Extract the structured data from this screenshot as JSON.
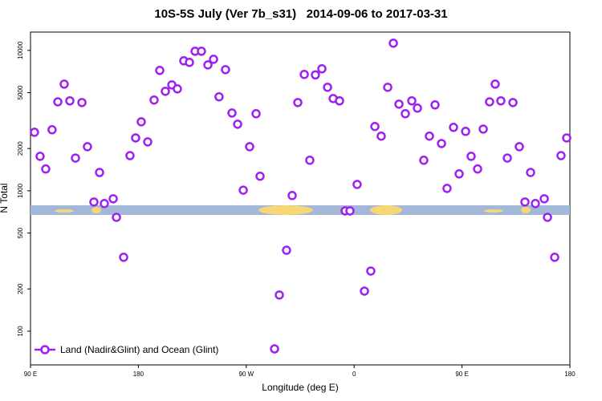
{
  "chart_data": {
    "type": "scatter",
    "title": "10S-5S July (Ver 7b_s31)   2014-09-06 to 2017-03-31",
    "x_label": "Longitude (deg E)",
    "y_label": "N Total",
    "log_y": true,
    "color": "#a020f0",
    "legend": "lower left",
    "xlim": [
      90,
      540
    ],
    "ylim": [
      57.5,
      13500
    ],
    "xticks": [
      {
        "value": 90,
        "label": "90 E"
      },
      {
        "value": 180,
        "label": "180"
      },
      {
        "value": 270,
        "label": "90 W"
      },
      {
        "value": 360,
        "label": "0"
      },
      {
        "value": 450,
        "label": "90 E"
      },
      {
        "value": 540,
        "label": "180"
      }
    ],
    "yticks": [
      100,
      200,
      500,
      1000,
      2000,
      5000,
      10000
    ],
    "series": [
      {
        "name": "Land (Nadir&Glint) and Ocean (Glint)",
        "color": "#a020f0",
        "x": [
          93.3,
          98,
          102.7,
          108,
          112.8,
          118.1,
          122.8,
          127.5,
          132.9,
          137.5,
          142.9,
          147.6,
          151.6,
          159,
          161.7,
          167.7,
          173,
          177.7,
          182.4,
          187.8,
          193.1,
          197.8,
          202.5,
          207.9,
          212.5,
          217.9,
          222.6,
          227.3,
          232.6,
          238,
          242.7,
          252.7,
          247.3,
          258.1,
          262.8,
          272.8,
          267.5,
          278.2,
          281.5,
          293.6,
          297.6,
          303.6,
          308.3,
          313,
          318.4,
          323,
          327.7,
          333.1,
          337.8,
          342.5,
          347.8,
          352.5,
          356.5,
          362.5,
          368.6,
          373.9,
          377.3,
          382.6,
          388,
          392.7,
          397.4,
          402.7,
          408.1,
          412.8,
          418.1,
          422.8,
          427.5,
          432.9,
          437.5,
          442.9,
          447.6,
          453,
          457.6,
          463,
          467.7,
          473,
          477.7,
          482.4,
          487.8,
          492.5,
          497.8,
          502.5,
          507.2,
          511.2,
          518.6,
          521.3,
          527.3,
          532.6,
          537.3
        ],
        "values": [
          2610,
          1760,
          1430,
          2720,
          4300,
          5750,
          4370,
          1710,
          4250,
          2060,
          832,
          1350,
          811,
          877,
          647,
          336,
          1780,
          2380,
          3100,
          2230,
          4430,
          7200,
          5110,
          5680,
          5320,
          8430,
          8210,
          9860,
          9860,
          7880,
          8640,
          7290,
          4670,
          3580,
          2980,
          2060,
          1010,
          3540,
          1270,
          74.8,
          181,
          377,
          925,
          4250,
          6740,
          1650,
          6690,
          7390,
          5460,
          4540,
          4370,
          719,
          719,
          1110,
          193,
          268,
          2870,
          2450,
          5460,
          11250,
          4140,
          3540,
          4370,
          3880,
          1650,
          2450,
          4090,
          2170,
          1040,
          2830,
          1320,
          2650,
          1760,
          1430,
          2750,
          4300,
          5750,
          4370,
          1710,
          4250,
          2060,
          832,
          1350,
          811,
          877,
          647,
          336,
          1780,
          2380
        ]
      }
    ]
  }
}
